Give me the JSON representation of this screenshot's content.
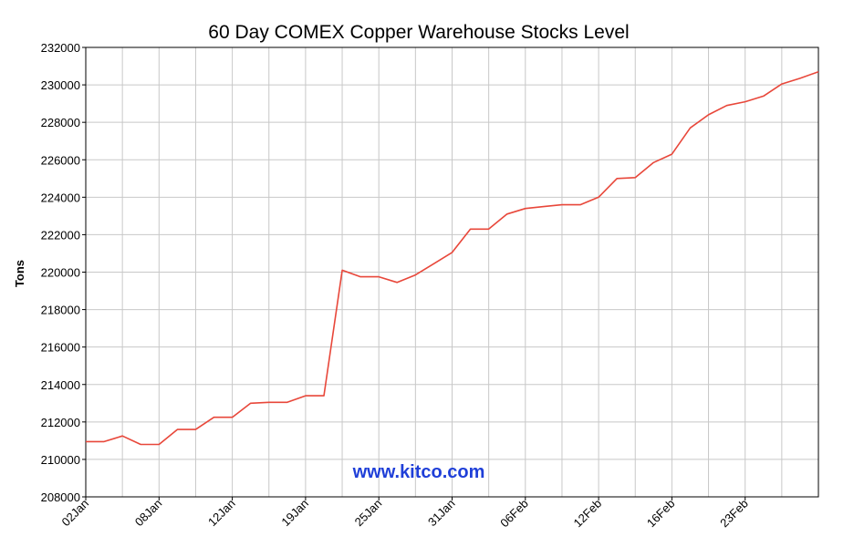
{
  "chart_data": {
    "type": "line",
    "title": "60 Day COMEX Copper Warehouse Stocks Level",
    "ylabel": "Tons",
    "watermark": "www.kitco.com",
    "ylim": [
      208000,
      232000
    ],
    "y_ticks": [
      208000,
      210000,
      212000,
      214000,
      216000,
      218000,
      220000,
      222000,
      224000,
      226000,
      228000,
      230000,
      232000
    ],
    "x_tick_labels": [
      "02Jan",
      "08Jan",
      "12Jan",
      "19Jan",
      "25Jan",
      "31Jan",
      "06Feb",
      "12Feb",
      "16Feb",
      "23Feb"
    ],
    "grid": true,
    "series": [
      {
        "color": "#e8473a",
        "values": [
          210950,
          210950,
          211250,
          210800,
          210800,
          211600,
          211600,
          212250,
          212250,
          213000,
          213050,
          213050,
          213400,
          213400,
          220100,
          219750,
          219750,
          219450,
          219850,
          220450,
          221050,
          222300,
          222300,
          223100,
          223400,
          223500,
          223600,
          223600,
          224000,
          225000,
          225050,
          225850,
          226300,
          227700,
          228400,
          228900,
          229100,
          229400,
          230050,
          230350,
          230700
        ]
      }
    ]
  },
  "colors": {
    "line": "#e8473a",
    "grid": "#c8c8c8",
    "watermark": "#1f3fd8"
  }
}
